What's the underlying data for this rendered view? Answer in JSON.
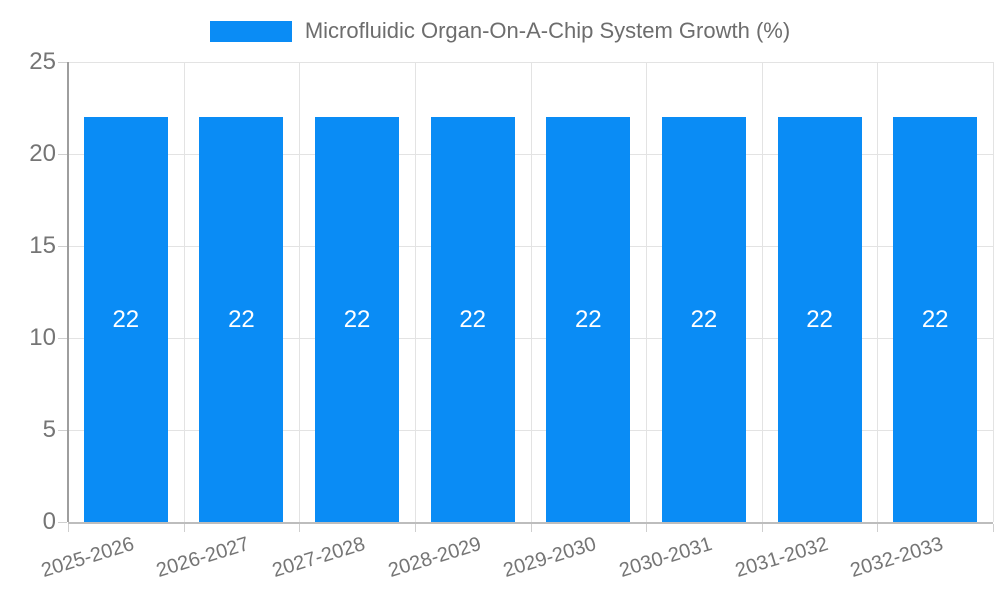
{
  "legend": {
    "items": [
      {
        "label": "Microfluidic Organ-On-A-Chip System Growth (%)",
        "color": "#0a8cf5"
      }
    ],
    "position": "top"
  },
  "chart_data": {
    "type": "bar",
    "title": "Microfluidic Organ-On-A-Chip System Growth (%)",
    "categories": [
      "2025-2026",
      "2026-2027",
      "2027-2028",
      "2028-2029",
      "2029-2030",
      "2030-2031",
      "2031-2032",
      "2032-2033"
    ],
    "values": [
      22,
      22,
      22,
      22,
      22,
      22,
      22,
      22
    ],
    "bar_value_labels": [
      "22",
      "22",
      "22",
      "22",
      "22",
      "22",
      "22",
      "22"
    ],
    "xlabel": "",
    "ylabel": "",
    "ylim": [
      0,
      25
    ],
    "yticks": [
      0,
      5,
      10,
      15,
      20,
      25
    ],
    "grid": true,
    "legend_position": "top",
    "x_tick_rotation_deg": -17
  },
  "colors": {
    "bar": "#0a8cf5",
    "bar_label": "#ffffff",
    "grid": "#e3e3e3",
    "axis_y_line": "#9e9e9e",
    "axis_x_line": "#bdbdbd",
    "tick": "#cfcfcf",
    "axis_text": "#757575",
    "legend_text": "#6d6d6d"
  }
}
